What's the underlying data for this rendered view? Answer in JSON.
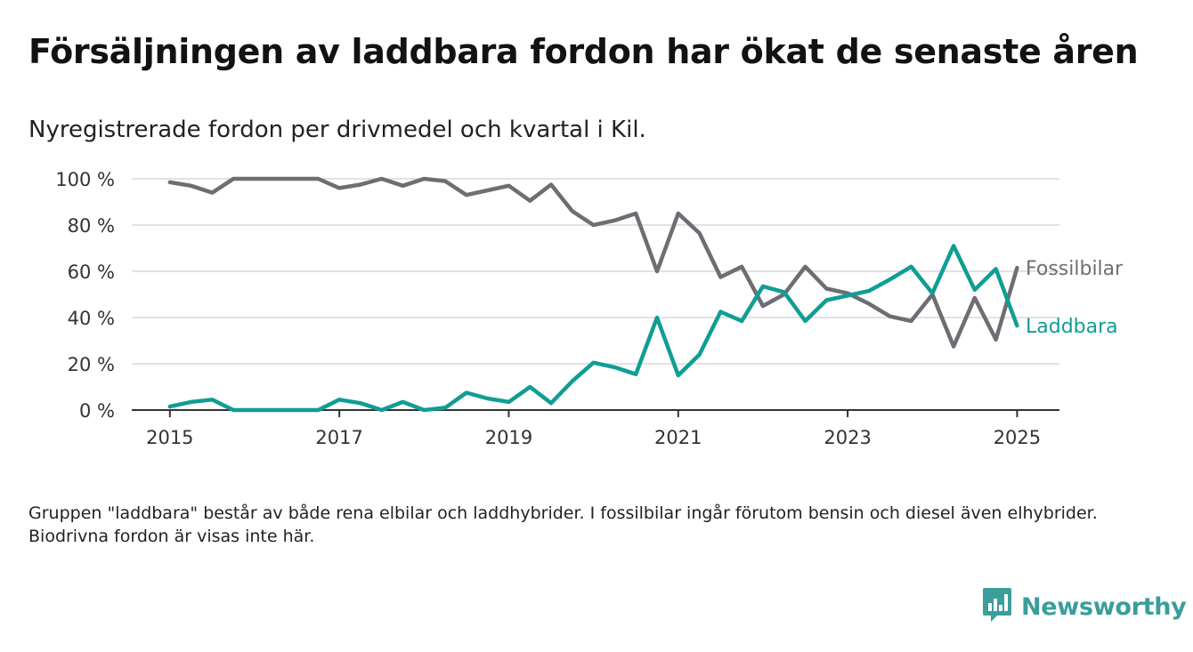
{
  "title": "Försäljningen av laddbara fordon har ökat de senaste åren",
  "subtitle": "Nyregistrerade fordon per drivmedel och kvartal i Kil.",
  "note": "Gruppen \"laddbara\" består av både rena elbilar och laddhybrider. I fossilbilar ingår förutom bensin och diesel även elhybrider. Biodrivna fordon är visas inte här.",
  "brand": {
    "name": "Newsworthy",
    "icon": "bar-chart-speech-bubble-icon",
    "color": "#3a9e9a"
  },
  "chart_data": {
    "type": "line",
    "x": [
      2015,
      2015.25,
      2015.5,
      2015.75,
      2016,
      2016.25,
      2016.5,
      2016.75,
      2017,
      2017.25,
      2017.5,
      2017.75,
      2018,
      2018.25,
      2018.5,
      2018.75,
      2019,
      2019.25,
      2019.5,
      2019.75,
      2020,
      2020.25,
      2020.5,
      2020.75,
      2021,
      2021.25,
      2021.5,
      2021.75,
      2022,
      2022.25,
      2022.5,
      2022.75,
      2023,
      2023.25,
      2023.5,
      2023.75,
      2024,
      2024.25,
      2024.5,
      2024.75,
      2025
    ],
    "xticks": [
      2015,
      2017,
      2019,
      2021,
      2023,
      2025
    ],
    "xlim": [
      2014.55,
      2025.5
    ],
    "ylim": [
      0,
      100
    ],
    "yticks": [
      0,
      20,
      40,
      60,
      80,
      100
    ],
    "ytick_labels": [
      "0 %",
      "20 %",
      "40 %",
      "60 %",
      "80 %",
      "100 %"
    ],
    "grid": true,
    "legend": "inline-labels-at-line-end",
    "series": [
      {
        "name": "Fossilbilar",
        "color": "#6e6d74",
        "values": [
          98.5,
          97,
          94,
          100,
          100,
          100,
          100,
          100,
          96,
          97.5,
          100,
          97,
          100,
          99,
          93,
          95,
          97,
          90.5,
          97.5,
          86,
          80,
          82,
          85,
          60,
          85,
          76.5,
          57.5,
          62,
          45,
          50,
          62,
          52.5,
          50.5,
          46,
          40.5,
          38.5,
          50,
          27.5,
          48.5,
          30.5,
          61.5
        ]
      },
      {
        "name": "Laddbara",
        "color": "#109d94",
        "values": [
          1.5,
          3.5,
          4.5,
          0,
          0,
          0,
          0,
          0,
          4.5,
          3,
          0,
          3.5,
          0,
          1,
          7.5,
          5,
          3.5,
          10,
          3,
          12.5,
          20.5,
          18.5,
          15.5,
          40,
          15,
          24,
          42.5,
          38.5,
          53.5,
          51,
          38.5,
          47.5,
          49.5,
          51.5,
          56.5,
          62,
          50.5,
          71,
          52,
          61,
          36.5
        ]
      }
    ]
  }
}
